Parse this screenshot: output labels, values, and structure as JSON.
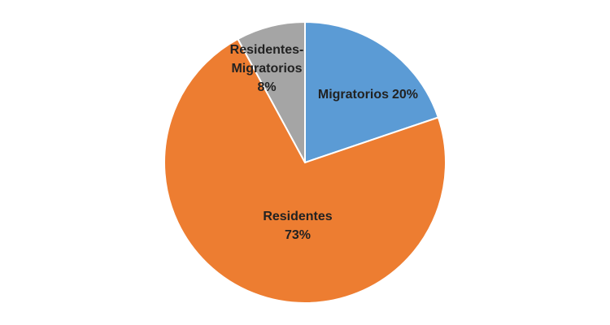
{
  "chart_data": {
    "type": "pie",
    "categories": [
      "Migratorios",
      "Residentes",
      "Residentes-Migratorios"
    ],
    "values": [
      20,
      73,
      8
    ],
    "value_labels": [
      "20%",
      "73%",
      "8%"
    ],
    "colors": [
      "#5b9bd5",
      "#ed7d31",
      "#a5a5a5"
    ]
  }
}
